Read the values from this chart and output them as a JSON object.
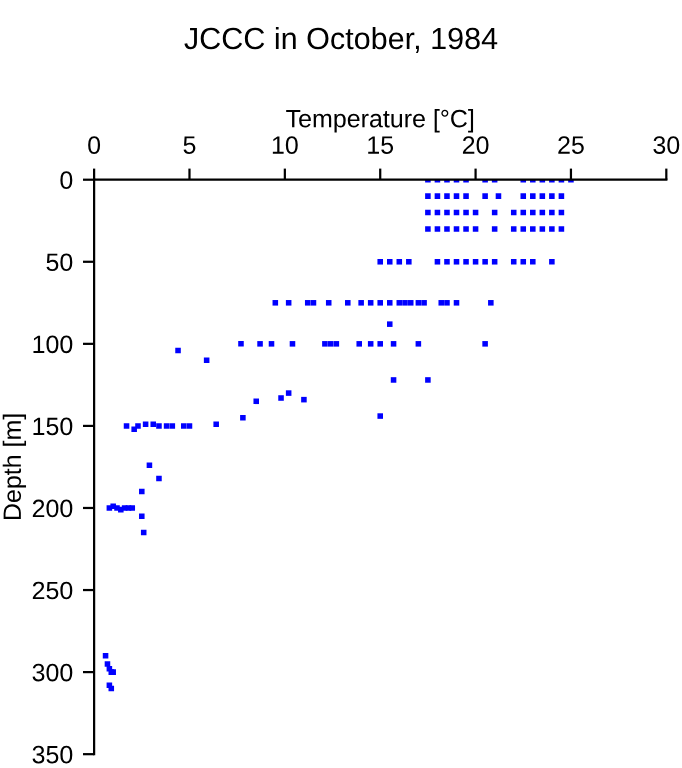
{
  "chart_data": {
    "type": "scatter",
    "title": "JCCC in October, 1984",
    "xlabel": "Temperature [°C]",
    "ylabel": "Depth [m]",
    "xlim": [
      0,
      30
    ],
    "xticks": [
      0,
      5,
      10,
      15,
      20,
      25,
      30
    ],
    "ylim": [
      350,
      0
    ],
    "yticks": [
      0,
      50,
      100,
      150,
      200,
      250,
      300,
      350
    ],
    "marker": "square",
    "grid": false,
    "series": [
      {
        "color": "#0000ff",
        "x": [
          17.5,
          18,
          18.5,
          19,
          19.5,
          20.5,
          21,
          22.5,
          23,
          23.5,
          24,
          24.5,
          25,
          17.5,
          18,
          18.5,
          19,
          19.5,
          20.5,
          21.2,
          22.5,
          23,
          23.5,
          24,
          24.5,
          17.5,
          18,
          18.5,
          19,
          19.5,
          20,
          21,
          22,
          22.5,
          23,
          23.5,
          24,
          24.5,
          17.5,
          18,
          18.5,
          19,
          19.5,
          20,
          21,
          22,
          22.5,
          23,
          23.5,
          24,
          24.5,
          15,
          15.5,
          16,
          16.5,
          18,
          18.5,
          19,
          19.5,
          20,
          20.5,
          21,
          22,
          22.5,
          23,
          24,
          9.5,
          10.2,
          11.2,
          11.5,
          12.3,
          13.3,
          14,
          14.5,
          15,
          15.5,
          16,
          16.3,
          16.6,
          17,
          17.3,
          18.2,
          18.5,
          19,
          20.8,
          15.5,
          4.4,
          5.9,
          7.7,
          8.7,
          9.3,
          10.4,
          12.1,
          12.4,
          12.7,
          13.9,
          14.5,
          15,
          15.7,
          17,
          17.5,
          20.5,
          15.7,
          15,
          11,
          10.2,
          9.8,
          8.5,
          7.8,
          1.7,
          2.1,
          2.3,
          2.7,
          3.1,
          3.4,
          3.8,
          4.1,
          4.7,
          5.0,
          6.4,
          2.9,
          3.4,
          2.5,
          0.8,
          1.0,
          1.2,
          1.4,
          1.6,
          1.8,
          2.0,
          2.6,
          2.5,
          0.6,
          0.7,
          0.8,
          0.9,
          1.0,
          0.8,
          0.9
        ],
        "values": [
          0,
          0,
          0,
          0,
          0,
          0,
          0,
          0,
          0,
          0,
          0,
          0,
          0,
          10,
          10,
          10,
          10,
          10,
          10,
          10,
          10,
          10,
          10,
          10,
          10,
          20,
          20,
          20,
          20,
          20,
          20,
          20,
          20,
          20,
          20,
          20,
          20,
          20,
          30,
          30,
          30,
          30,
          30,
          30,
          30,
          30,
          30,
          30,
          30,
          30,
          30,
          50,
          50,
          50,
          50,
          50,
          50,
          50,
          50,
          50,
          50,
          50,
          50,
          50,
          50,
          50,
          75,
          75,
          75,
          75,
          75,
          75,
          75,
          75,
          75,
          75,
          75,
          75,
          75,
          75,
          75,
          75,
          75,
          75,
          75,
          88,
          104,
          110,
          100,
          100,
          100,
          100,
          100,
          100,
          100,
          100,
          100,
          100,
          100,
          100,
          122,
          100,
          122,
          144,
          134,
          130,
          133,
          135,
          145,
          150,
          152,
          150,
          149,
          149,
          150,
          150,
          150,
          150,
          150,
          149,
          174,
          182,
          190,
          200,
          199,
          200,
          201,
          200,
          200,
          200,
          215,
          205,
          290,
          295,
          298,
          300,
          300,
          308,
          310
        ]
      }
    ]
  }
}
